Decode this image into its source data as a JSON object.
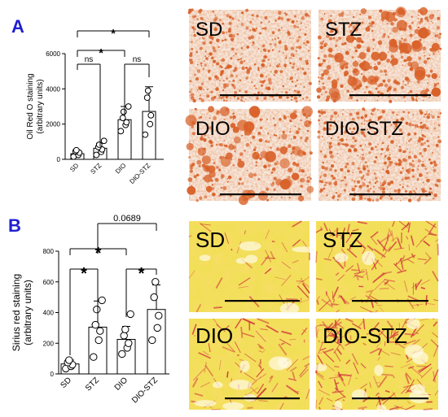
{
  "colors": {
    "panel_letter": "#1f1fd0",
    "bar_fill": "#ffffff",
    "bar_stroke": "#000000",
    "point_stroke": "#000000",
    "oil_red_background": "#f6e6dc",
    "oil_red_droplet": "#d9622a",
    "sirius_background": "#f2df58",
    "sirius_collagen": "#cf2a3a"
  },
  "chart_data": [
    {
      "panel": "A",
      "type": "bar",
      "ylabel_line1": "Oil Red O staining",
      "ylabel_line2": "(arbitrary units)",
      "ylim": [
        0,
        6000
      ],
      "yticks": [
        0,
        2000,
        4000,
        6000
      ],
      "categories": [
        "SD",
        "STZ",
        "DIO",
        "DIO-STZ"
      ],
      "values": [
        320,
        630,
        2250,
        2720
      ],
      "errors": [
        160,
        280,
        750,
        1400
      ],
      "points": [
        [
          150,
          250,
          380,
          450,
          520
        ],
        [
          250,
          420,
          560,
          700,
          830,
          1050
        ],
        [
          1600,
          1950,
          2100,
          2350,
          2700,
          3000
        ],
        [
          1400,
          2000,
          2500,
          3500,
          3900
        ]
      ],
      "comparisons": [
        {
          "groups": [
            "SD",
            "STZ"
          ],
          "label": "ns"
        },
        {
          "groups": [
            "DIO",
            "DIO-STZ"
          ],
          "label": "ns"
        },
        {
          "groups": [
            "SD",
            "DIO"
          ],
          "label": "*"
        },
        {
          "groups": [
            "SD",
            "DIO-STZ"
          ],
          "label": "*"
        }
      ]
    },
    {
      "panel": "B",
      "type": "bar",
      "ylabel_line1": "Sirius red staining",
      "ylabel_line2": "(arbitrary units)",
      "ylim": [
        0,
        800
      ],
      "yticks": [
        0,
        200,
        400,
        600,
        800
      ],
      "categories": [
        "SD",
        "STZ",
        "DIO",
        "DIO-STZ"
      ],
      "values": [
        65,
        305,
        225,
        420
      ],
      "errors": [
        25,
        170,
        85,
        160
      ],
      "points": [
        [
          35,
          50,
          60,
          75,
          90
        ],
        [
          110,
          220,
          280,
          320,
          420,
          480
        ],
        [
          130,
          170,
          200,
          250,
          290,
          390
        ],
        [
          220,
          300,
          380,
          500,
          600
        ]
      ],
      "comparisons": [
        {
          "groups": [
            "SD",
            "STZ"
          ],
          "label": "*"
        },
        {
          "groups": [
            "DIO",
            "DIO-STZ"
          ],
          "label": "*"
        },
        {
          "groups": [
            "SD",
            "DIO"
          ],
          "label": "*"
        },
        {
          "groups": [
            "STZ",
            "DIO-STZ"
          ],
          "label": "0.0689"
        }
      ]
    }
  ],
  "panels": {
    "A": {
      "letter": "A"
    },
    "B": {
      "letter": "B"
    }
  },
  "micrographs": {
    "oil_red": [
      {
        "label": "SD",
        "scale_bar": true
      },
      {
        "label": "STZ",
        "scale_bar": true
      },
      {
        "label": "DIO",
        "scale_bar": true
      },
      {
        "label": "DIO-STZ",
        "scale_bar": true
      }
    ],
    "sirius": [
      {
        "label": "SD",
        "scale_bar": true
      },
      {
        "label": "STZ",
        "scale_bar": true
      },
      {
        "label": "DIO",
        "scale_bar": true
      },
      {
        "label": "DIO-STZ",
        "scale_bar": true
      }
    ]
  }
}
